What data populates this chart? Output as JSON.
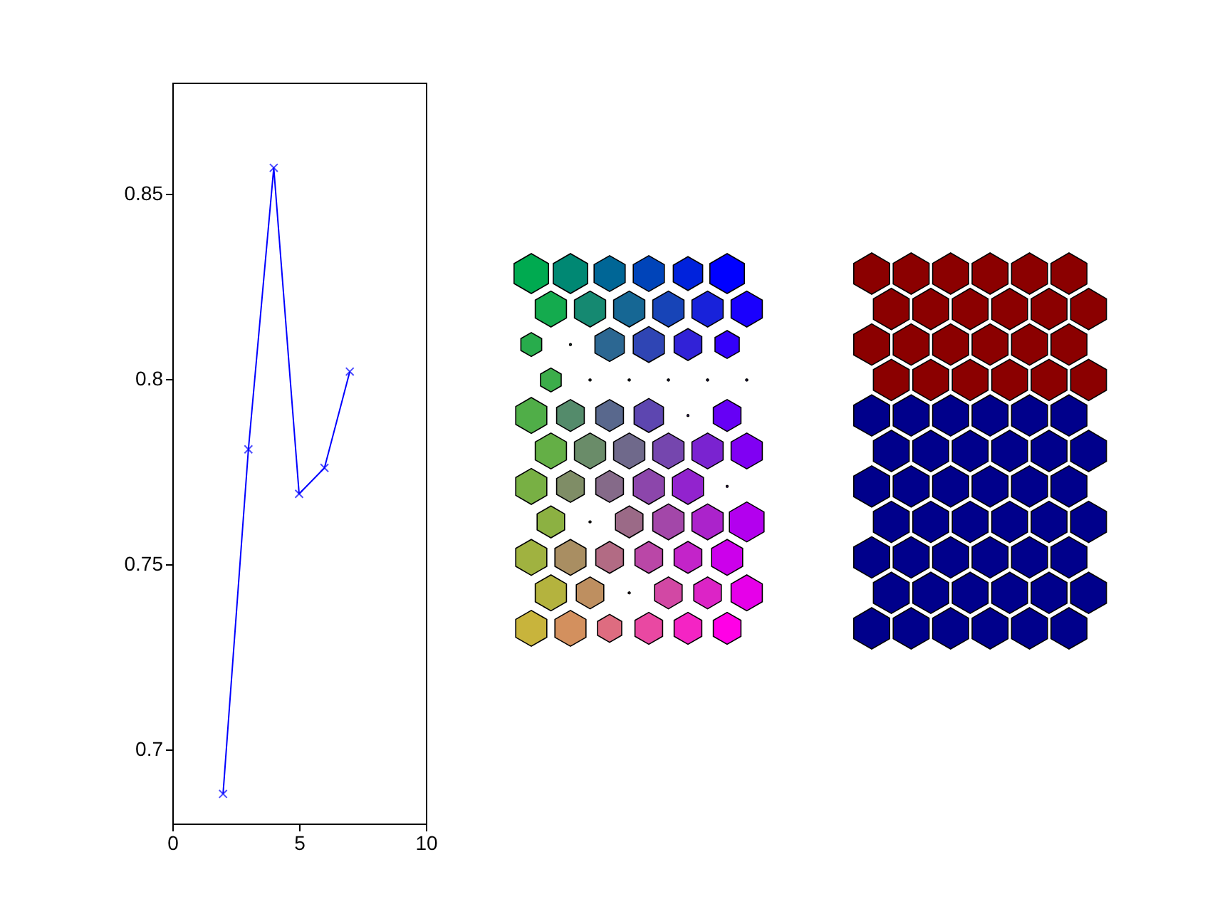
{
  "chart_data": {
    "type": "line",
    "x": [
      2,
      3,
      4,
      5,
      6,
      7
    ],
    "series": [
      {
        "color": "#0000ff",
        "values": [
          0.688,
          0.781,
          0.857,
          0.769,
          0.776,
          0.802
        ]
      }
    ],
    "xlim": [
      0,
      10
    ],
    "xticks": [
      0,
      5,
      10
    ],
    "ylim": [
      0.68,
      0.88
    ],
    "yticks": [
      0.7,
      0.75,
      0.8,
      0.85
    ],
    "marker": "cross",
    "grid": false,
    "legend": false
  }
}
